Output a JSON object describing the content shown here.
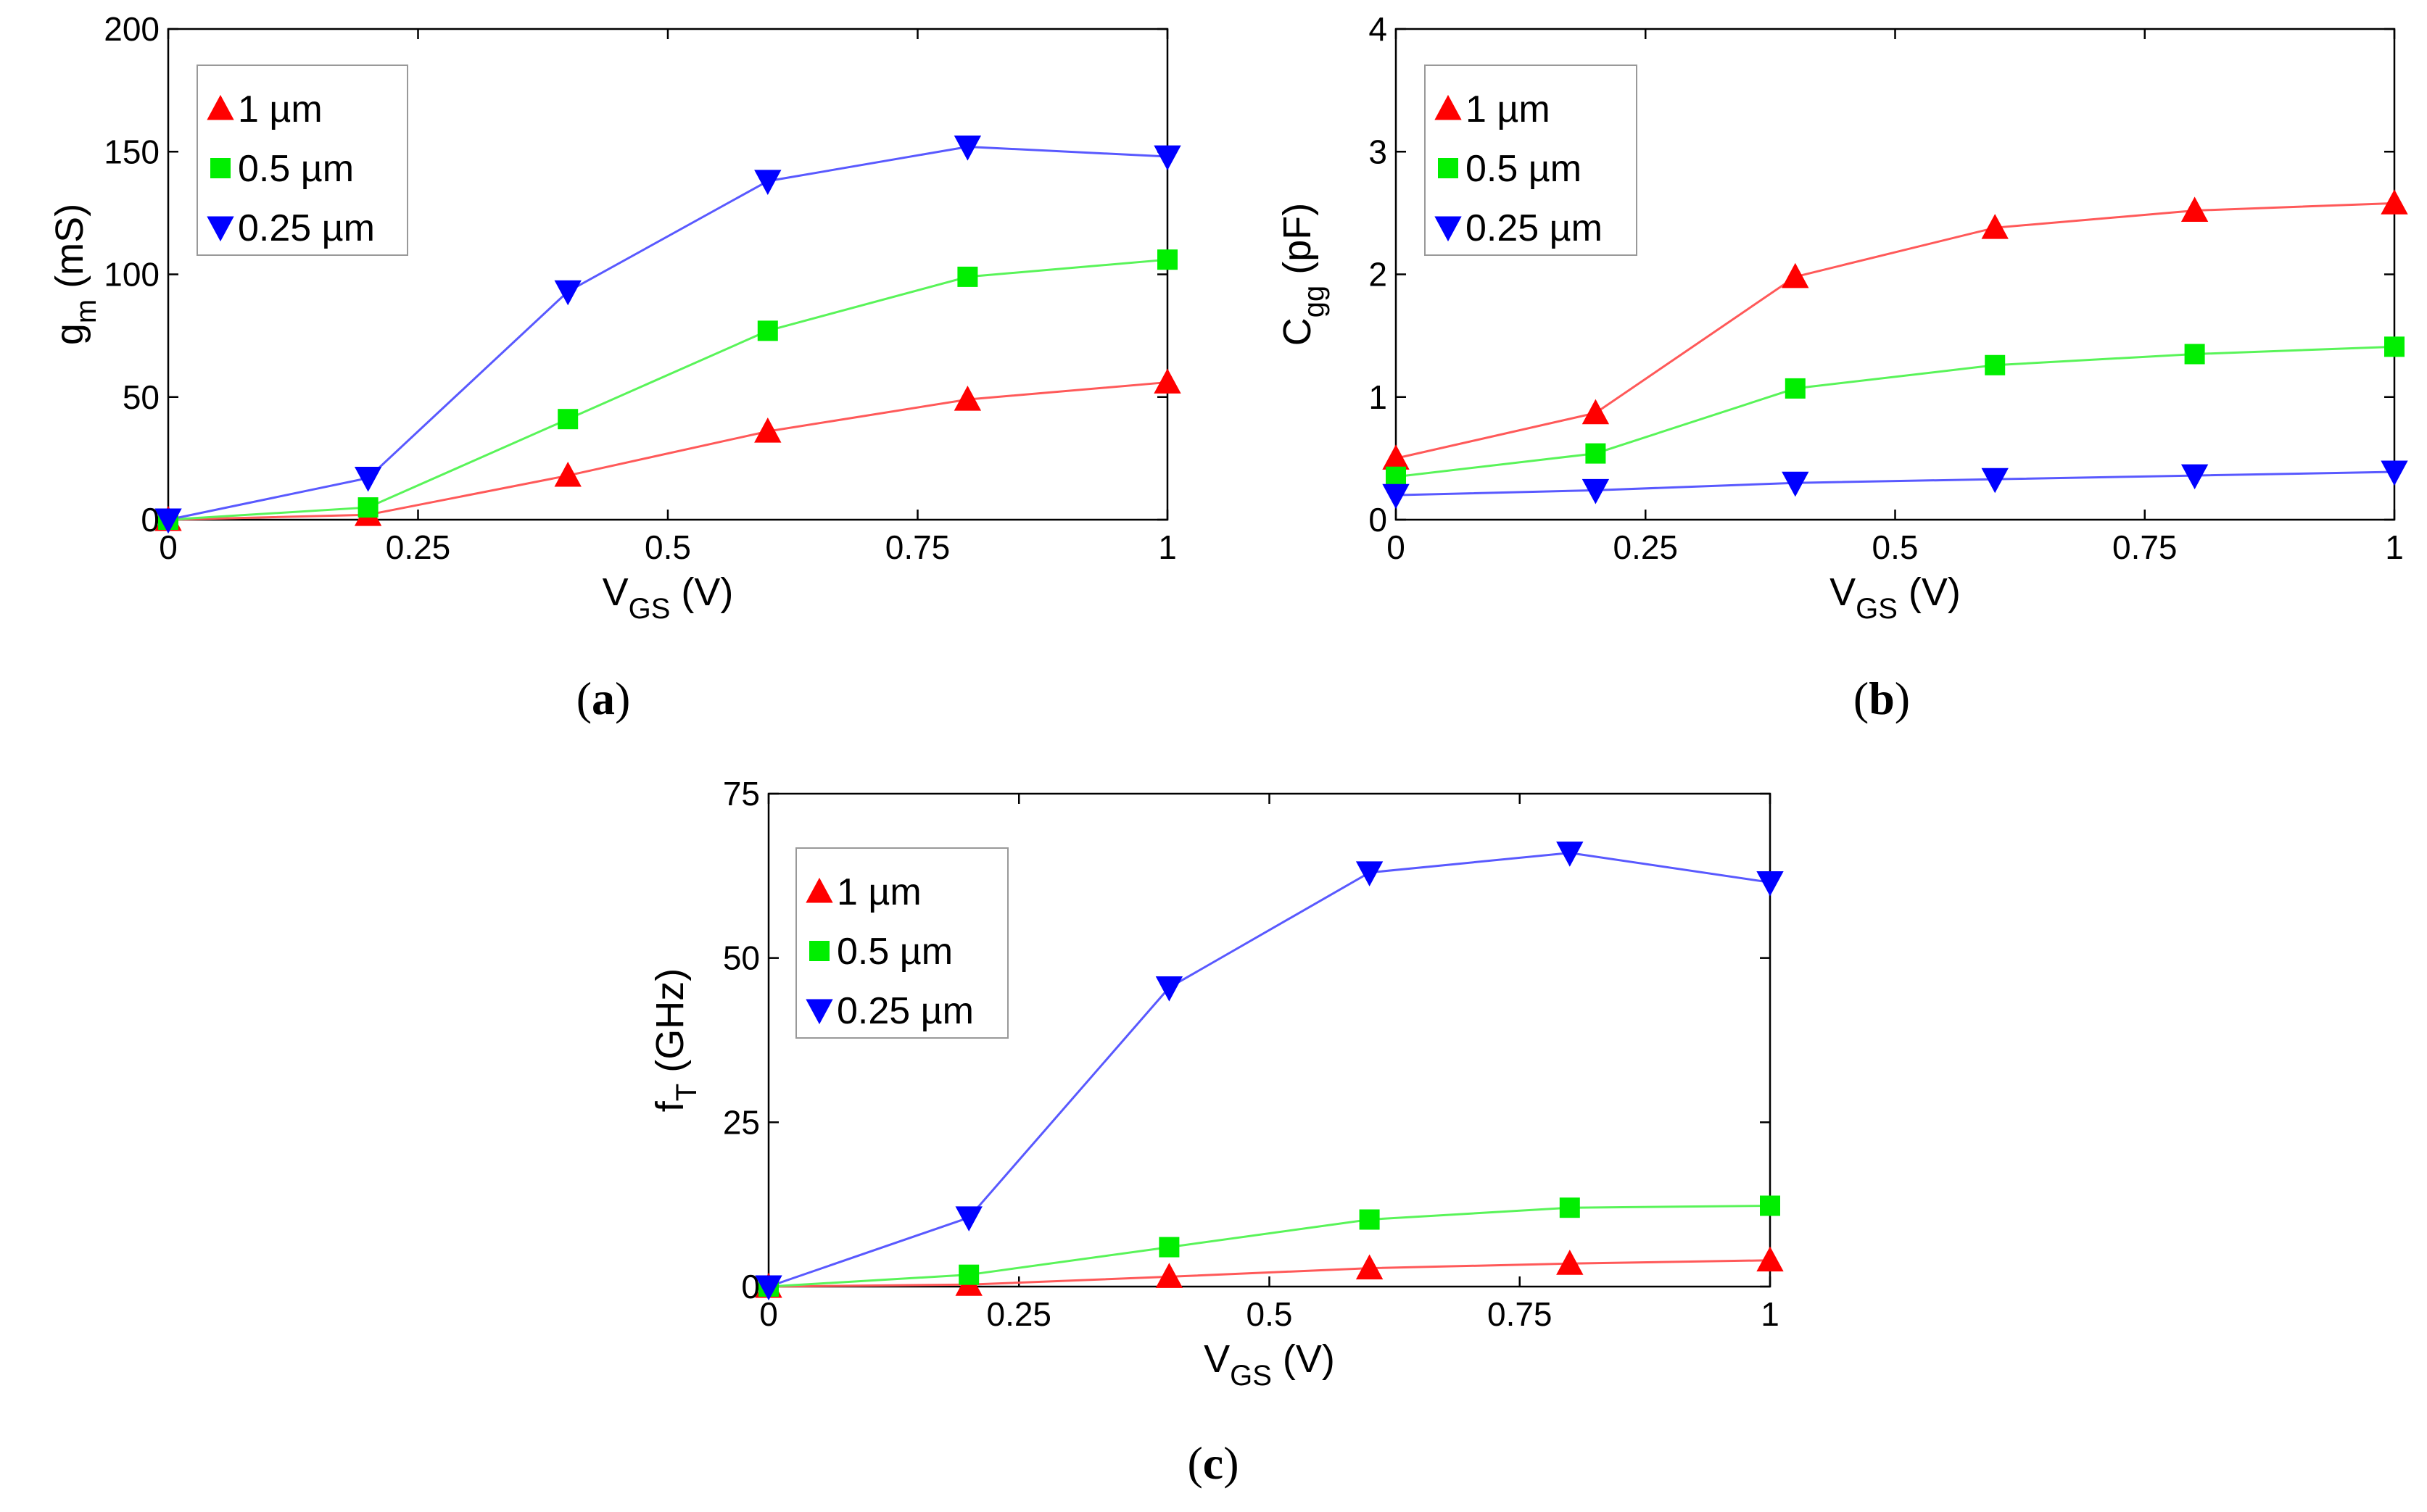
{
  "chart_data": [
    {
      "id": "a",
      "type": "line",
      "caption": "a",
      "x": [
        0,
        0.2,
        0.4,
        0.6,
        0.8,
        1.0
      ],
      "xlim": [
        0,
        1
      ],
      "ylim": [
        0,
        200
      ],
      "xticks": [
        "0",
        "0.25",
        "0.5",
        "0.75",
        "1"
      ],
      "yticks": [
        "0",
        "50",
        "100",
        "150",
        "200"
      ],
      "xlabel": {
        "main": "V",
        "sub": "GS",
        "unit": " (V)"
      },
      "ylabel": {
        "main": "g",
        "sub": "m",
        "unit": " (mS)"
      },
      "series": [
        {
          "name": "1 µm",
          "color": "#ff0000",
          "marker": "triangle-up",
          "values": [
            0,
            2,
            18,
            36,
            49,
            56
          ]
        },
        {
          "name": "0.5 µm",
          "color": "#00ee00",
          "marker": "square",
          "values": [
            0,
            5,
            41,
            77,
            99,
            106
          ]
        },
        {
          "name": "0.25 µm",
          "color": "#0000ff",
          "marker": "triangle-down",
          "values": [
            0,
            17,
            93,
            138,
            152,
            148
          ]
        }
      ]
    },
    {
      "id": "b",
      "type": "line",
      "caption": "b",
      "x": [
        0,
        0.2,
        0.4,
        0.6,
        0.8,
        1.0
      ],
      "xlim": [
        0,
        1
      ],
      "ylim": [
        0,
        4
      ],
      "xticks": [
        "0",
        "0.25",
        "0.5",
        "0.75",
        "1"
      ],
      "yticks": [
        "0",
        "1",
        "2",
        "3",
        "4"
      ],
      "xlabel": {
        "main": "V",
        "sub": "GS",
        "unit": " (V)"
      },
      "ylabel": {
        "main": "C",
        "sub": "gg",
        "unit": " (pF)"
      },
      "series": [
        {
          "name": "1 µm",
          "color": "#ff0000",
          "marker": "triangle-up",
          "values": [
            0.5,
            0.87,
            1.98,
            2.38,
            2.52,
            2.58
          ]
        },
        {
          "name": "0.5 µm",
          "color": "#00ee00",
          "marker": "square",
          "values": [
            0.35,
            0.54,
            1.07,
            1.26,
            1.35,
            1.41
          ]
        },
        {
          "name": "0.25 µm",
          "color": "#0000ff",
          "marker": "triangle-down",
          "values": [
            0.2,
            0.24,
            0.3,
            0.33,
            0.36,
            0.39
          ]
        }
      ]
    },
    {
      "id": "c",
      "type": "line",
      "caption": "c",
      "x": [
        0,
        0.2,
        0.4,
        0.6,
        0.8,
        1.0
      ],
      "xlim": [
        0,
        1
      ],
      "ylim": [
        0,
        75
      ],
      "xticks": [
        "0",
        "0.25",
        "0.5",
        "0.75",
        "1"
      ],
      "yticks": [
        "0",
        "25",
        "50",
        "75"
      ],
      "xlabel": {
        "main": "V",
        "sub": "GS",
        "unit": " (V)"
      },
      "ylabel": {
        "main": "f",
        "sub": "T",
        "unit": " (GHz)"
      },
      "series": [
        {
          "name": "1 µm",
          "color": "#ff0000",
          "marker": "triangle-up",
          "values": [
            0,
            0.3,
            1.5,
            2.8,
            3.5,
            4.0
          ]
        },
        {
          "name": "0.5 µm",
          "color": "#00ee00",
          "marker": "square",
          "values": [
            0,
            1.8,
            6.0,
            10.2,
            12.0,
            12.3
          ]
        },
        {
          "name": "0.25 µm",
          "color": "#0000ff",
          "marker": "triangle-down",
          "values": [
            0,
            10.5,
            45.5,
            63.0,
            66.0,
            61.5
          ]
        }
      ]
    }
  ]
}
